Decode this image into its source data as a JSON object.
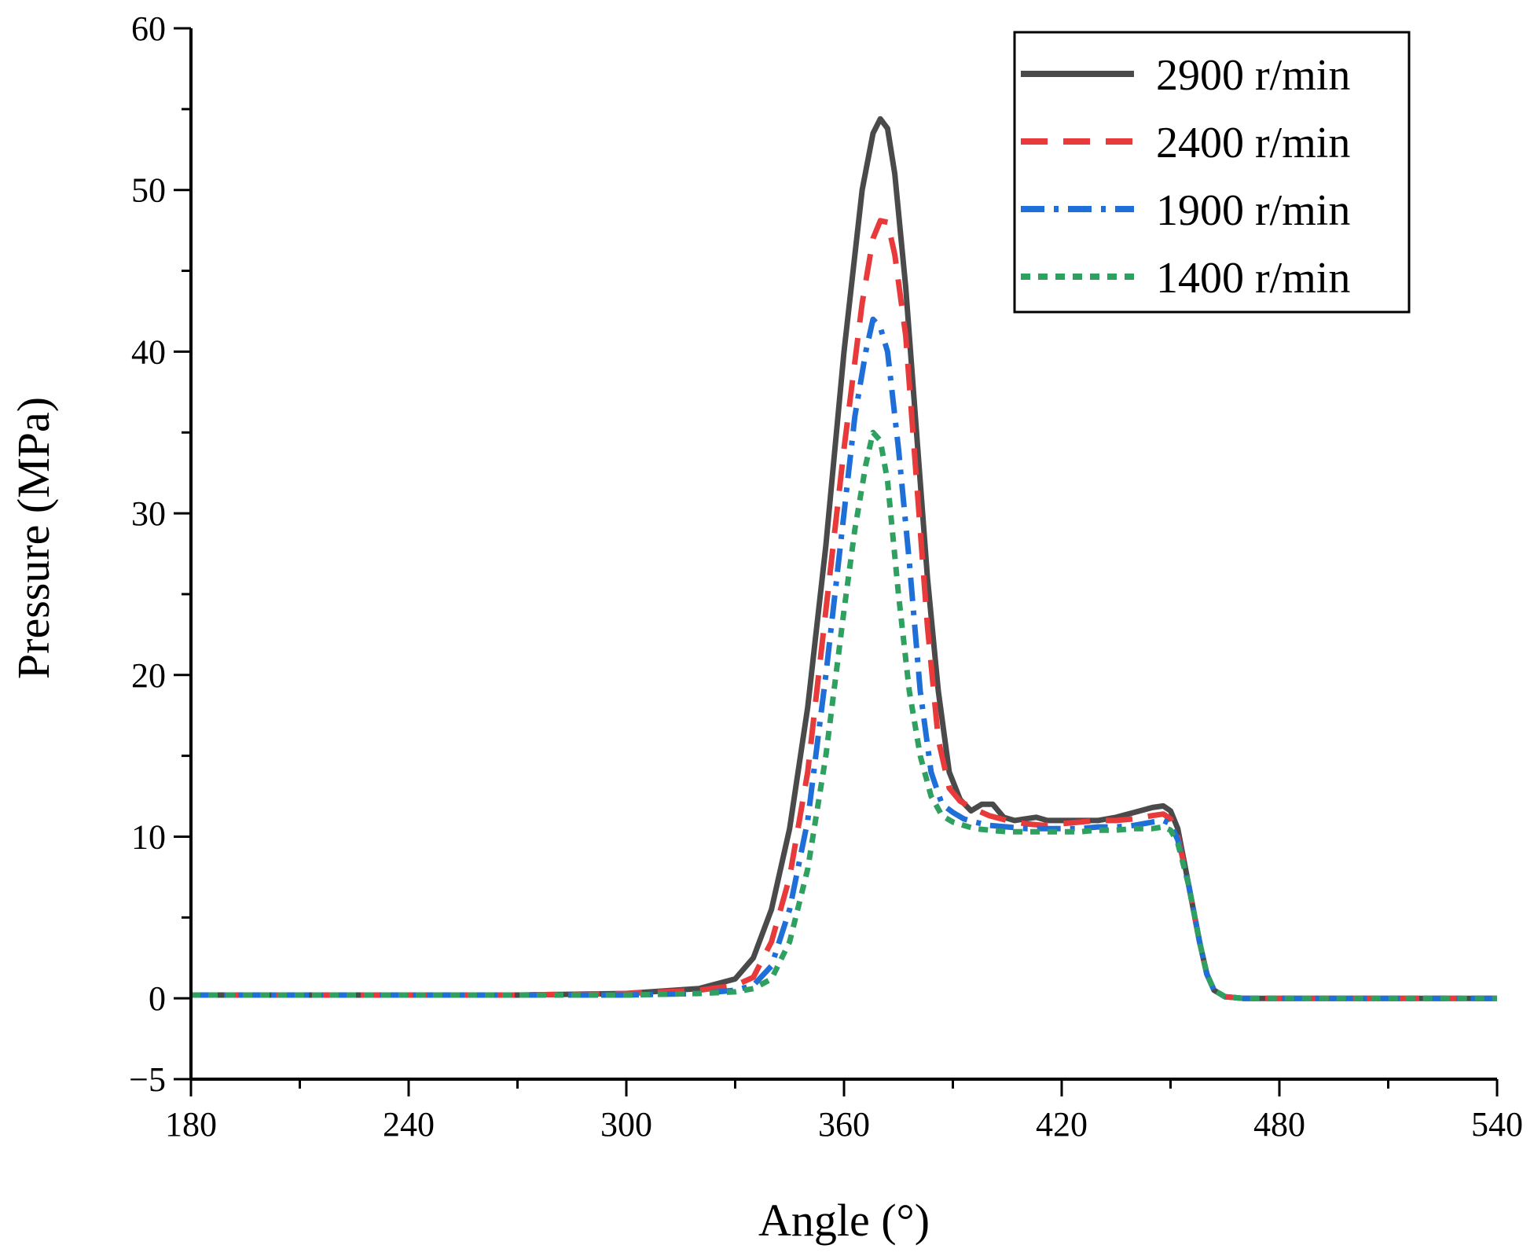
{
  "chart_data": {
    "type": "line",
    "title": "",
    "xlabel": "Angle (°)",
    "ylabel": "Pressure (MPa)",
    "xlim": [
      180,
      540
    ],
    "ylim": [
      -5,
      60
    ],
    "xticks": [
      180,
      240,
      300,
      360,
      420,
      480,
      540
    ],
    "xtick_labels": [
      "180",
      "240",
      "300",
      "360",
      "420",
      "480",
      "540"
    ],
    "yticks": [
      -5,
      0,
      10,
      20,
      30,
      40,
      50,
      60
    ],
    "ytick_labels": [
      "−5",
      "0",
      "10",
      "20",
      "30",
      "40",
      "50",
      "60"
    ],
    "grid": false,
    "legend_position": "top-right",
    "series": [
      {
        "name": "2900 r/min",
        "color": "#4a4a4a",
        "dash": "solid",
        "x": [
          180,
          210,
          240,
          270,
          300,
          320,
          330,
          335,
          340,
          345,
          350,
          355,
          360,
          365,
          368,
          370,
          372,
          374,
          377,
          380,
          383,
          386,
          389,
          392,
          395,
          398,
          401,
          404,
          407,
          410,
          413,
          416,
          420,
          425,
          430,
          435,
          440,
          445,
          448,
          450,
          452,
          455,
          458,
          460,
          462,
          465,
          470,
          480,
          500,
          520,
          540
        ],
        "y": [
          0.2,
          0.2,
          0.2,
          0.2,
          0.3,
          0.6,
          1.2,
          2.5,
          5.5,
          10.5,
          18,
          28,
          40,
          50,
          53.5,
          54.4,
          53.8,
          51,
          44,
          35,
          26,
          19,
          14,
          12.3,
          11.6,
          12,
          12,
          11.2,
          11,
          11.1,
          11.2,
          11,
          11,
          11,
          11,
          11.2,
          11.5,
          11.8,
          11.9,
          11.6,
          10.5,
          7,
          3.5,
          1.5,
          0.5,
          0.1,
          0,
          0,
          0,
          0,
          0
        ]
      },
      {
        "name": "2400 r/min",
        "color": "#e8393b",
        "dash": "long-dash",
        "x": [
          180,
          210,
          240,
          270,
          300,
          320,
          330,
          335,
          340,
          345,
          350,
          355,
          360,
          365,
          368,
          370,
          372,
          374,
          377,
          380,
          383,
          386,
          389,
          392,
          395,
          400,
          405,
          410,
          415,
          420,
          425,
          430,
          435,
          440,
          445,
          448,
          450,
          452,
          455,
          458,
          460,
          462,
          465,
          470,
          480,
          500,
          520,
          540
        ],
        "y": [
          0.2,
          0.2,
          0.2,
          0.2,
          0.3,
          0.5,
          0.8,
          1.3,
          3.5,
          7.5,
          14,
          24,
          34,
          43,
          47,
          48.1,
          48,
          46,
          41,
          32,
          23,
          16,
          13,
          12.2,
          11.8,
          11.3,
          11,
          10.8,
          10.7,
          10.8,
          10.9,
          11,
          11,
          11.1,
          11.3,
          11.4,
          11.1,
          10,
          7,
          3.5,
          1.5,
          0.5,
          0.1,
          0,
          0,
          0,
          0,
          0
        ]
      },
      {
        "name": "1900 r/min",
        "color": "#1f6fd8",
        "dash": "dash-dot",
        "x": [
          180,
          210,
          240,
          270,
          300,
          320,
          330,
          335,
          340,
          345,
          350,
          355,
          360,
          363,
          366,
          368,
          370,
          372,
          375,
          378,
          381,
          384,
          387,
          390,
          393,
          396,
          400,
          405,
          410,
          415,
          420,
          425,
          430,
          435,
          440,
          445,
          448,
          450,
          452,
          455,
          458,
          460,
          462,
          465,
          470,
          480,
          500,
          520,
          540
        ],
        "y": [
          0.2,
          0.2,
          0.2,
          0.2,
          0.2,
          0.3,
          0.5,
          0.8,
          2,
          5.5,
          11,
          20,
          30,
          36,
          40,
          42,
          41.5,
          40,
          34,
          27,
          19,
          14,
          12,
          11.5,
          11.1,
          10.9,
          10.7,
          10.6,
          10.5,
          10.5,
          10.5,
          10.5,
          10.6,
          10.6,
          10.7,
          10.9,
          11,
          10.8,
          9.8,
          7,
          3.5,
          1.5,
          0.5,
          0.1,
          0,
          0,
          0,
          0,
          0
        ]
      },
      {
        "name": "1400 r/min",
        "color": "#2ea05f",
        "dash": "dotted",
        "x": [
          180,
          210,
          240,
          270,
          300,
          320,
          330,
          335,
          340,
          345,
          350,
          355,
          360,
          363,
          366,
          368,
          370,
          372,
          375,
          378,
          381,
          384,
          387,
          390,
          393,
          396,
          400,
          405,
          410,
          415,
          420,
          425,
          430,
          435,
          440,
          445,
          448,
          450,
          452,
          455,
          458,
          460,
          462,
          465,
          470,
          480,
          500,
          520,
          540
        ],
        "y": [
          0.2,
          0.2,
          0.2,
          0.2,
          0.2,
          0.3,
          0.4,
          0.6,
          1.2,
          3.5,
          8,
          15,
          24,
          29,
          33,
          35,
          34.5,
          32,
          25,
          19,
          15,
          12.5,
          11.3,
          10.9,
          10.7,
          10.5,
          10.4,
          10.3,
          10.3,
          10.3,
          10.3,
          10.3,
          10.4,
          10.4,
          10.5,
          10.5,
          10.6,
          10.4,
          9.6,
          7,
          3.5,
          1.5,
          0.5,
          0.1,
          0,
          0,
          0,
          0,
          0
        ]
      }
    ]
  }
}
